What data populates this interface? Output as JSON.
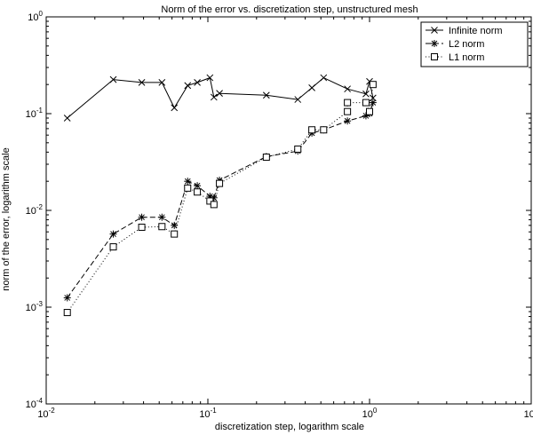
{
  "chart_data": {
    "type": "line",
    "title": "Norm of the error vs. discretization step, unstructured mesh",
    "xlabel": "discretization step, logarithm scale",
    "ylabel": "norm of the error, logarithm scale",
    "xscale": "log",
    "yscale": "log",
    "xlim": [
      0.01,
      10
    ],
    "ylim": [
      0.0001,
      1
    ],
    "x_ticks": [
      {
        "base": "10",
        "exp": "-2"
      },
      {
        "base": "10",
        "exp": "-1"
      },
      {
        "base": "10",
        "exp": "0"
      },
      {
        "base": "10",
        "exp": "1"
      }
    ],
    "y_ticks": [
      {
        "base": "10",
        "exp": "-4"
      },
      {
        "base": "10",
        "exp": "-3"
      },
      {
        "base": "10",
        "exp": "-2"
      },
      {
        "base": "10",
        "exp": "-1"
      },
      {
        "base": "10",
        "exp": "0"
      }
    ],
    "grid": false,
    "legend_position": "top-right",
    "series": [
      {
        "name": "Infinite norm",
        "line_style": "solid",
        "marker": "x",
        "color": "#000000",
        "x": [
          0.0135,
          0.026,
          0.039,
          0.052,
          0.062,
          0.075,
          0.086,
          0.103,
          0.109,
          0.118,
          0.23,
          0.36,
          0.44,
          0.52,
          0.73,
          0.95,
          1.0,
          1.05
        ],
        "y": [
          0.09,
          0.225,
          0.21,
          0.21,
          0.115,
          0.195,
          0.21,
          0.235,
          0.148,
          0.162,
          0.155,
          0.14,
          0.185,
          0.235,
          0.18,
          0.16,
          0.215,
          0.145
        ]
      },
      {
        "name": "L2 norm",
        "line_style": "dashed",
        "marker": "*",
        "color": "#000000",
        "x": [
          0.0135,
          0.026,
          0.039,
          0.052,
          0.062,
          0.075,
          0.086,
          0.103,
          0.109,
          0.118,
          0.23,
          0.36,
          0.44,
          0.52,
          0.73,
          0.95,
          1.0,
          1.05
        ],
        "y": [
          0.00125,
          0.0057,
          0.0085,
          0.0085,
          0.007,
          0.02,
          0.018,
          0.014,
          0.0135,
          0.0205,
          0.036,
          0.041,
          0.063,
          0.068,
          0.084,
          0.095,
          0.1,
          0.13
        ]
      },
      {
        "name": "L1 norm",
        "line_style": "dotted",
        "marker": "square",
        "color": "#000000",
        "x": [
          0.0135,
          0.026,
          0.039,
          0.052,
          0.062,
          0.075,
          0.086,
          0.103,
          0.109,
          0.118,
          0.23,
          0.36,
          0.44,
          0.52,
          0.73,
          0.73,
          0.95,
          1.0,
          1.05
        ],
        "y": [
          0.00088,
          0.0042,
          0.0067,
          0.0068,
          0.0057,
          0.017,
          0.0155,
          0.0125,
          0.0115,
          0.019,
          0.0355,
          0.043,
          0.068,
          0.068,
          0.105,
          0.13,
          0.13,
          0.105,
          0.2
        ]
      }
    ]
  }
}
